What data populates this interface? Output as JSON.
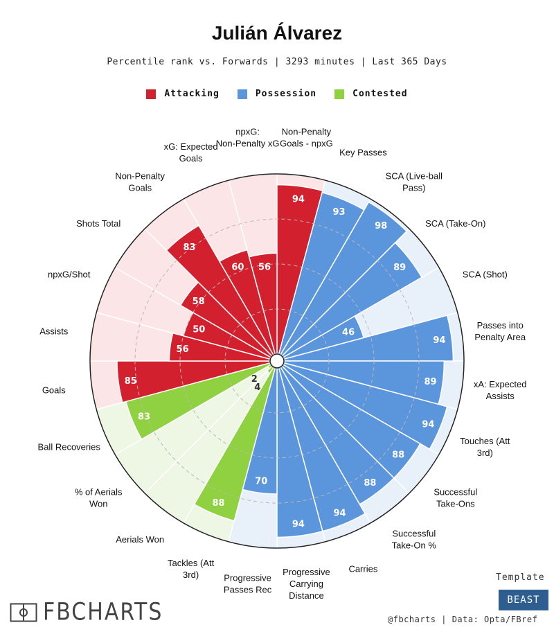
{
  "header": {
    "title": "Julián Álvarez",
    "subtitle": "Percentile rank vs. Forwards | 3293 minutes | Last 365 Days"
  },
  "legend": [
    {
      "label": "Attacking",
      "color": "#d2202e"
    },
    {
      "label": "Possession",
      "color": "#5b95dc"
    },
    {
      "label": "Contested",
      "color": "#8fd140"
    }
  ],
  "colors": {
    "Attacking": {
      "bar": "#d2202e",
      "bg": "#fbe5e7"
    },
    "Possession": {
      "bar": "#5b95dc",
      "bg": "#e8f0f9"
    },
    "Contested": {
      "bar": "#8fd140",
      "bg": "#eef6e4"
    }
  },
  "chart_data": {
    "type": "radial-bar",
    "title": "Julián Álvarez",
    "subtitle": "Percentile rank vs. Forwards | 3293 minutes | Last 365 Days",
    "range": [
      0,
      100
    ],
    "metrics": [
      {
        "label": "Non-Penalty Goals - npxG",
        "value": 94,
        "group": "Attacking"
      },
      {
        "label": "Key Passes",
        "value": 93,
        "group": "Possession"
      },
      {
        "label": "SCA (Live-ball Pass)",
        "value": 98,
        "group": "Possession"
      },
      {
        "label": "SCA (Take-On)",
        "value": 89,
        "group": "Possession"
      },
      {
        "label": "SCA (Shot)",
        "value": 46,
        "group": "Possession"
      },
      {
        "label": "Passes into Penalty Area",
        "value": 94,
        "group": "Possession"
      },
      {
        "label": "xA: Expected Assists",
        "value": 89,
        "group": "Possession"
      },
      {
        "label": "Touches (Att 3rd)",
        "value": 94,
        "group": "Possession"
      },
      {
        "label": "Successful Take-Ons",
        "value": 88,
        "group": "Possession"
      },
      {
        "label": "Successful Take-On %",
        "value": 88,
        "group": "Possession"
      },
      {
        "label": "Carries",
        "value": 94,
        "group": "Possession"
      },
      {
        "label": "Progressive Carrying Distance",
        "value": 94,
        "group": "Possession"
      },
      {
        "label": "Progressive Passes Rec",
        "value": 70,
        "group": "Possession"
      },
      {
        "label": "Tackles (Att 3rd)",
        "value": 88,
        "group": "Contested"
      },
      {
        "label": "Aerials Won",
        "value": 4,
        "group": "Contested"
      },
      {
        "label": "% of Aerials Won",
        "value": 2,
        "group": "Contested"
      },
      {
        "label": "Ball Recoveries",
        "value": 83,
        "group": "Contested"
      },
      {
        "label": "Goals",
        "value": 85,
        "group": "Attacking"
      },
      {
        "label": "Assists",
        "value": 56,
        "group": "Attacking"
      },
      {
        "label": "npxG/Shot",
        "value": 50,
        "group": "Attacking"
      },
      {
        "label": "Shots Total",
        "value": 58,
        "group": "Attacking"
      },
      {
        "label": "Non-Penalty Goals",
        "value": 83,
        "group": "Attacking"
      },
      {
        "label": "xG: Expected Goals",
        "value": 60,
        "group": "Attacking"
      },
      {
        "label": "npxG: Non-Penalty xG",
        "value": 56,
        "group": "Attacking"
      }
    ]
  },
  "footer": {
    "logo": "FBCHARTS",
    "template_label": "Template",
    "template_value": "BEAST",
    "credits": "@fbcharts | Data: Opta/FBref"
  }
}
